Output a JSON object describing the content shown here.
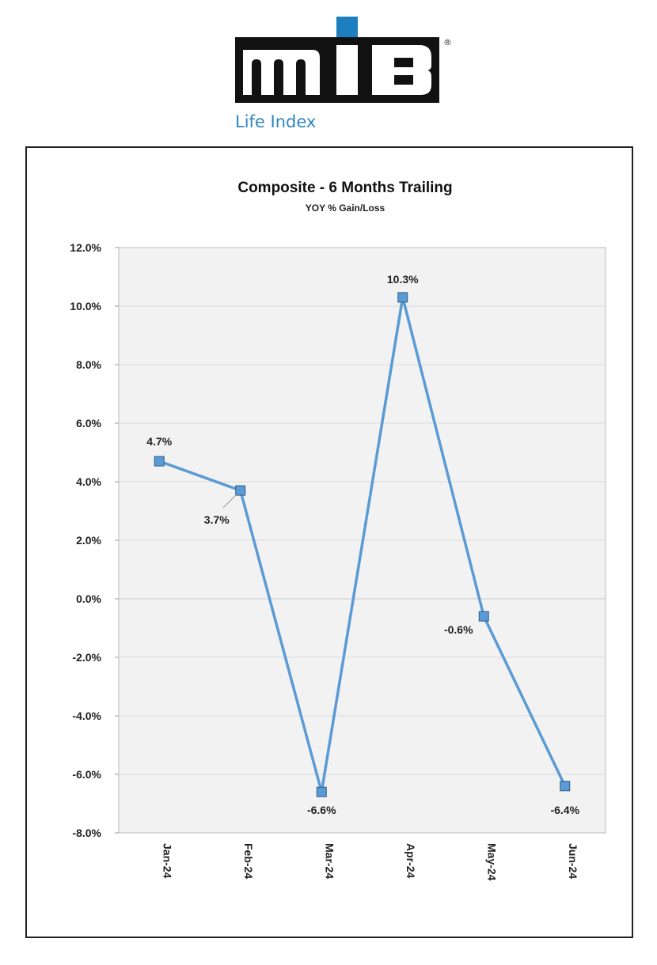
{
  "logo": {
    "text": "MIB",
    "registered": "®",
    "tagline": "Life Index",
    "accent_color": "#1d7ec0"
  },
  "chart_data": {
    "type": "line",
    "title": "Composite - 6 Months Trailing",
    "subtitle": "YOY % Gain/Loss",
    "xlabel": "",
    "ylabel": "",
    "categories": [
      "Jan-24",
      "Feb-24",
      "Mar-24",
      "Apr-24",
      "May-24",
      "Jun-24"
    ],
    "values": [
      4.7,
      3.7,
      -6.6,
      10.3,
      -0.6,
      -6.4
    ],
    "data_labels": [
      "4.7%",
      "3.7%",
      "-6.6%",
      "10.3%",
      "-0.6%",
      "-6.4%"
    ],
    "ylim": [
      -8,
      12
    ],
    "yticks": [
      -8,
      -6,
      -4,
      -2,
      0,
      2,
      4,
      6,
      8,
      10,
      12
    ],
    "ytick_labels": [
      "-8.0%",
      "-6.0%",
      "-4.0%",
      "-2.0%",
      "0.0%",
      "2.0%",
      "4.0%",
      "6.0%",
      "8.0%",
      "10.0%",
      "12.0%"
    ],
    "grid": true,
    "legend": "none",
    "line_color": "#5b9bd5",
    "marker": "square",
    "plot_background": "#f2f2f2"
  }
}
